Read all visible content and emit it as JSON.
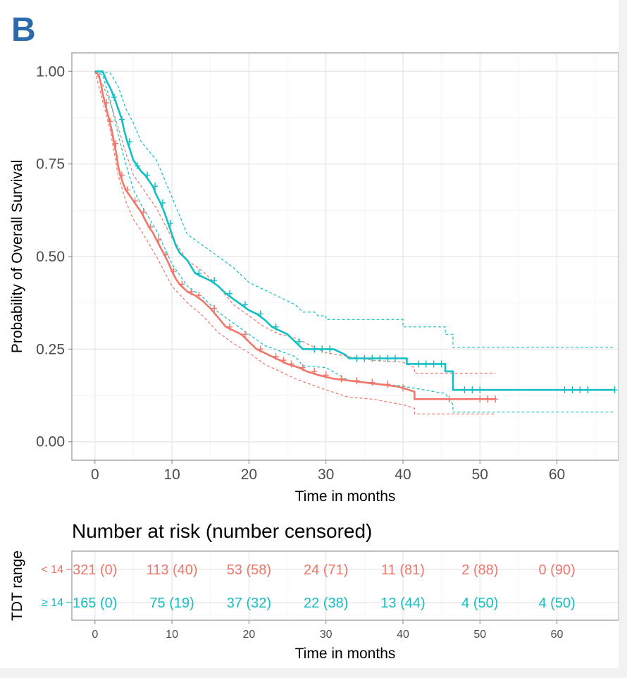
{
  "panel_label": "B",
  "chart_data": {
    "type": "line",
    "subtype": "kaplan-meier",
    "xlabel": "Time in months",
    "ylabel": "Probability of Overall Survival",
    "xlim": [
      -3,
      68
    ],
    "ylim": [
      -0.05,
      1.05
    ],
    "x_ticks": [
      0,
      10,
      20,
      30,
      40,
      50,
      60
    ],
    "y_ticks": [
      0.0,
      0.25,
      0.5,
      0.75,
      1.0
    ],
    "y_tick_labels": [
      "0.00",
      "0.25",
      "0.50",
      "0.75",
      "1.00"
    ],
    "grid": true,
    "legend": "none",
    "series": [
      {
        "name": "< 14",
        "color": "#ef776b",
        "survival": [
          [
            0,
            1.0
          ],
          [
            0.5,
            0.99
          ],
          [
            0.8,
            0.965
          ],
          [
            1.0,
            0.94
          ],
          [
            1.3,
            0.915
          ],
          [
            1.6,
            0.89
          ],
          [
            1.9,
            0.865
          ],
          [
            2.2,
            0.84
          ],
          [
            2.5,
            0.805
          ],
          [
            2.8,
            0.775
          ],
          [
            3.0,
            0.745
          ],
          [
            3.3,
            0.72
          ],
          [
            3.6,
            0.7
          ],
          [
            4.0,
            0.68
          ],
          [
            4.5,
            0.665
          ],
          [
            5.0,
            0.65
          ],
          [
            5.5,
            0.635
          ],
          [
            6.0,
            0.62
          ],
          [
            6.5,
            0.6
          ],
          [
            7.0,
            0.58
          ],
          [
            7.5,
            0.565
          ],
          [
            8.0,
            0.545
          ],
          [
            8.5,
            0.525
          ],
          [
            9.0,
            0.505
          ],
          [
            9.5,
            0.485
          ],
          [
            10.0,
            0.46
          ],
          [
            10.5,
            0.44
          ],
          [
            11.0,
            0.425
          ],
          [
            11.5,
            0.415
          ],
          [
            12.0,
            0.405
          ],
          [
            13.0,
            0.395
          ],
          [
            14.0,
            0.38
          ],
          [
            15.0,
            0.36
          ],
          [
            16.0,
            0.335
          ],
          [
            17.0,
            0.31
          ],
          [
            18.0,
            0.3
          ],
          [
            19.0,
            0.29
          ],
          [
            20.0,
            0.27
          ],
          [
            21.0,
            0.25
          ],
          [
            22.0,
            0.24
          ],
          [
            23.0,
            0.23
          ],
          [
            24.0,
            0.22
          ],
          [
            25.0,
            0.21
          ],
          [
            26.5,
            0.2
          ],
          [
            27.5,
            0.19
          ],
          [
            29.0,
            0.18
          ],
          [
            31.0,
            0.17
          ],
          [
            33.0,
            0.165
          ],
          [
            35.0,
            0.16
          ],
          [
            37.0,
            0.155
          ],
          [
            39.0,
            0.15
          ],
          [
            40.0,
            0.145
          ],
          [
            41.5,
            0.135
          ],
          [
            41.5,
            0.115
          ],
          [
            52.0,
            0.115
          ]
        ],
        "upper_ci": [
          [
            0,
            1.0
          ],
          [
            1.0,
            0.965
          ],
          [
            2.0,
            0.915
          ],
          [
            3.0,
            0.85
          ],
          [
            4.0,
            0.78
          ],
          [
            5.0,
            0.72
          ],
          [
            6.0,
            0.69
          ],
          [
            8.0,
            0.63
          ],
          [
            10.0,
            0.55
          ],
          [
            12.0,
            0.49
          ],
          [
            14.0,
            0.46
          ],
          [
            16.0,
            0.42
          ],
          [
            18.0,
            0.37
          ],
          [
            20.0,
            0.34
          ],
          [
            22.0,
            0.31
          ],
          [
            24.0,
            0.29
          ],
          [
            26.0,
            0.28
          ],
          [
            28.0,
            0.26
          ],
          [
            30.0,
            0.24
          ],
          [
            33.0,
            0.23
          ],
          [
            36.0,
            0.22
          ],
          [
            40.0,
            0.215
          ],
          [
            41.5,
            0.2
          ],
          [
            41.5,
            0.185
          ],
          [
            52.0,
            0.185
          ]
        ],
        "lower_ci": [
          [
            0,
            1.0
          ],
          [
            1.0,
            0.92
          ],
          [
            2.0,
            0.84
          ],
          [
            3.0,
            0.72
          ],
          [
            4.0,
            0.65
          ],
          [
            5.0,
            0.6
          ],
          [
            6.0,
            0.57
          ],
          [
            8.0,
            0.5
          ],
          [
            10.0,
            0.42
          ],
          [
            12.0,
            0.375
          ],
          [
            14.0,
            0.34
          ],
          [
            16.0,
            0.295
          ],
          [
            18.0,
            0.265
          ],
          [
            20.0,
            0.24
          ],
          [
            22.0,
            0.21
          ],
          [
            24.0,
            0.19
          ],
          [
            26.0,
            0.17
          ],
          [
            28.0,
            0.155
          ],
          [
            30.0,
            0.14
          ],
          [
            33.0,
            0.12
          ],
          [
            36.0,
            0.115
          ],
          [
            40.0,
            0.1
          ],
          [
            41.5,
            0.09
          ],
          [
            41.5,
            0.075
          ],
          [
            52.0,
            0.075
          ]
        ],
        "censor_times": [
          1.5,
          2.0,
          2.7,
          3.5,
          4.2,
          5.2,
          6.3,
          7.2,
          8.3,
          9.2,
          10.2,
          11.3,
          12.5,
          13.5,
          15.5,
          17.5,
          19.5,
          21.5,
          23.5,
          24.5,
          25.5,
          27,
          28.5,
          30,
          32,
          34,
          36,
          38,
          40,
          46,
          50,
          51,
          52
        ]
      },
      {
        "name": "≥ 14",
        "color": "#13bfc3",
        "survival": [
          [
            0,
            1.0
          ],
          [
            1.0,
            1.0
          ],
          [
            1.3,
            0.985
          ],
          [
            1.6,
            0.97
          ],
          [
            2.0,
            0.955
          ],
          [
            2.5,
            0.93
          ],
          [
            3.0,
            0.9
          ],
          [
            3.5,
            0.87
          ],
          [
            3.8,
            0.84
          ],
          [
            4.2,
            0.81
          ],
          [
            4.6,
            0.785
          ],
          [
            5.0,
            0.76
          ],
          [
            5.5,
            0.745
          ],
          [
            6.0,
            0.73
          ],
          [
            6.5,
            0.72
          ],
          [
            7.0,
            0.705
          ],
          [
            7.5,
            0.69
          ],
          [
            8.0,
            0.665
          ],
          [
            8.5,
            0.645
          ],
          [
            9.0,
            0.62
          ],
          [
            9.5,
            0.59
          ],
          [
            10.0,
            0.56
          ],
          [
            10.5,
            0.53
          ],
          [
            11.0,
            0.51
          ],
          [
            12.0,
            0.49
          ],
          [
            13.0,
            0.455
          ],
          [
            14.0,
            0.445
          ],
          [
            15.0,
            0.435
          ],
          [
            16.0,
            0.42
          ],
          [
            17.0,
            0.4
          ],
          [
            18.0,
            0.385
          ],
          [
            19.0,
            0.37
          ],
          [
            20.0,
            0.355
          ],
          [
            21.0,
            0.345
          ],
          [
            22.0,
            0.33
          ],
          [
            23.0,
            0.31
          ],
          [
            24.0,
            0.3
          ],
          [
            25.0,
            0.29
          ],
          [
            26.0,
            0.27
          ],
          [
            27.0,
            0.25
          ],
          [
            31.0,
            0.25
          ],
          [
            32.5,
            0.235
          ],
          [
            33.0,
            0.225
          ],
          [
            40.5,
            0.225
          ],
          [
            40.5,
            0.21
          ],
          [
            45.5,
            0.21
          ],
          [
            45.5,
            0.19
          ],
          [
            46.5,
            0.19
          ],
          [
            46.5,
            0.14
          ],
          [
            67.5,
            0.14
          ]
        ],
        "upper_ci": [
          [
            0,
            1.0
          ],
          [
            2.0,
            0.995
          ],
          [
            3.0,
            0.96
          ],
          [
            4.0,
            0.9
          ],
          [
            5.0,
            0.86
          ],
          [
            6.0,
            0.81
          ],
          [
            8.0,
            0.76
          ],
          [
            10.0,
            0.66
          ],
          [
            12.0,
            0.56
          ],
          [
            14.0,
            0.53
          ],
          [
            16.0,
            0.5
          ],
          [
            18.0,
            0.47
          ],
          [
            20.0,
            0.43
          ],
          [
            22.0,
            0.41
          ],
          [
            24.0,
            0.39
          ],
          [
            26.0,
            0.37
          ],
          [
            27.0,
            0.35
          ],
          [
            28.5,
            0.35
          ],
          [
            29.0,
            0.34
          ],
          [
            30.0,
            0.34
          ],
          [
            30.0,
            0.33
          ],
          [
            40.0,
            0.33
          ],
          [
            40.0,
            0.31
          ],
          [
            45.5,
            0.31
          ],
          [
            45.5,
            0.29
          ],
          [
            46.5,
            0.29
          ],
          [
            46.5,
            0.255
          ],
          [
            67.5,
            0.255
          ]
        ],
        "lower_ci": [
          [
            0,
            1.0
          ],
          [
            1.0,
            0.99
          ],
          [
            2.0,
            0.92
          ],
          [
            3.0,
            0.83
          ],
          [
            4.0,
            0.75
          ],
          [
            5.0,
            0.68
          ],
          [
            6.0,
            0.64
          ],
          [
            8.0,
            0.57
          ],
          [
            10.0,
            0.48
          ],
          [
            12.0,
            0.42
          ],
          [
            14.0,
            0.39
          ],
          [
            16.0,
            0.35
          ],
          [
            18.0,
            0.32
          ],
          [
            20.0,
            0.29
          ],
          [
            22.0,
            0.26
          ],
          [
            24.0,
            0.245
          ],
          [
            26.0,
            0.23
          ],
          [
            27.0,
            0.205
          ],
          [
            30.0,
            0.2
          ],
          [
            33.0,
            0.165
          ],
          [
            40.0,
            0.15
          ],
          [
            45.5,
            0.13
          ],
          [
            46.5,
            0.1
          ],
          [
            46.5,
            0.08
          ],
          [
            67.5,
            0.08
          ]
        ],
        "censor_times": [
          2.5,
          3.5,
          4.5,
          5.5,
          6.8,
          7.8,
          8.8,
          9.8,
          13.5,
          15.5,
          17.5,
          19.5,
          21.5,
          23.5,
          26.5,
          28.5,
          29.5,
          30.5,
          34,
          35,
          36,
          37,
          38,
          39,
          42,
          43,
          44,
          45,
          48,
          49,
          50,
          61,
          62,
          63,
          64,
          67.5
        ]
      }
    ],
    "risk_table": {
      "title": "Number at risk (number censored)",
      "strata_title": "TDT range",
      "xlabel": "Time in months",
      "times": [
        0,
        10,
        20,
        30,
        40,
        50,
        60
      ],
      "rows": [
        {
          "label": "< 14",
          "color": "#ef776b",
          "values": [
            "321 (0)",
            "113 (40)",
            "53 (58)",
            "24 (71)",
            "11 (81)",
            "2 (88)",
            "0 (90)"
          ]
        },
        {
          "label": "≥ 14",
          "color": "#13bfc3",
          "values": [
            "165 (0)",
            "75 (19)",
            "37 (32)",
            "22 (38)",
            "13 (44)",
            "4 (50)",
            "4 (50)"
          ]
        }
      ]
    }
  }
}
